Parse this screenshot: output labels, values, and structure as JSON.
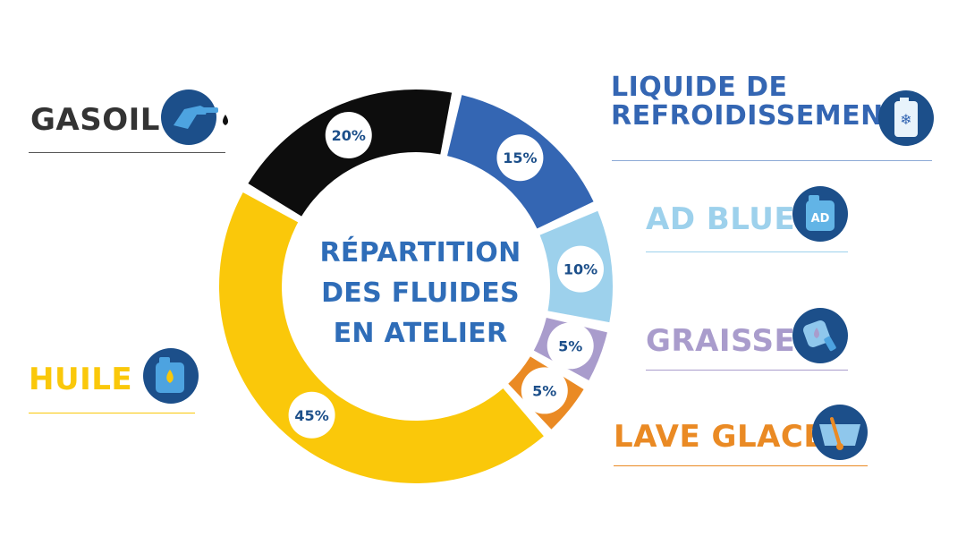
{
  "chart_data": {
    "type": "donut",
    "title": [
      "RÉPARTITION",
      "DES FLUIDES",
      "EN ATELIER"
    ],
    "segments": [
      {
        "name": "GASOIL",
        "value": 20,
        "label": "20%",
        "color": "#0d0d0d"
      },
      {
        "name": "LIQUIDE DE REFROIDISSEMENT",
        "value": 15,
        "label": "15%",
        "color": "#3466b3"
      },
      {
        "name": "AD BLUE",
        "value": 10,
        "label": "10%",
        "color": "#9dd1ec"
      },
      {
        "name": "GRAISSE",
        "value": 5,
        "label": "5%",
        "color": "#a99ccc"
      },
      {
        "name": "LAVE GLACE",
        "value": 5,
        "label": "5%",
        "color": "#ea8a24"
      },
      {
        "name": "HUILE",
        "value": 45,
        "label": "45%",
        "color": "#fac80a"
      }
    ]
  },
  "legend": {
    "gasoil": {
      "lines": [
        "GASOIL"
      ],
      "color": "#333333",
      "icon": "fuel-nozzle-icon"
    },
    "liquide": {
      "lines": [
        "LIQUIDE DE",
        "REFROIDISSEMENT"
      ],
      "color": "#3466b3",
      "icon": "coolant-snowflake-icon"
    },
    "adblue": {
      "lines": [
        "AD BLUE"
      ],
      "color": "#9dd1ec",
      "icon": "adblue-can-icon",
      "icon_text": "AD"
    },
    "graisse": {
      "lines": [
        "GRAISSE"
      ],
      "color": "#a99ccc",
      "icon": "grease-gun-icon"
    },
    "laveglace": {
      "lines": [
        "LAVE GLACE"
      ],
      "color": "#ea8a24",
      "icon": "windshield-wiper-icon"
    },
    "huile": {
      "lines": [
        "HUILE"
      ],
      "color": "#fac80a",
      "icon": "oil-can-icon"
    }
  }
}
